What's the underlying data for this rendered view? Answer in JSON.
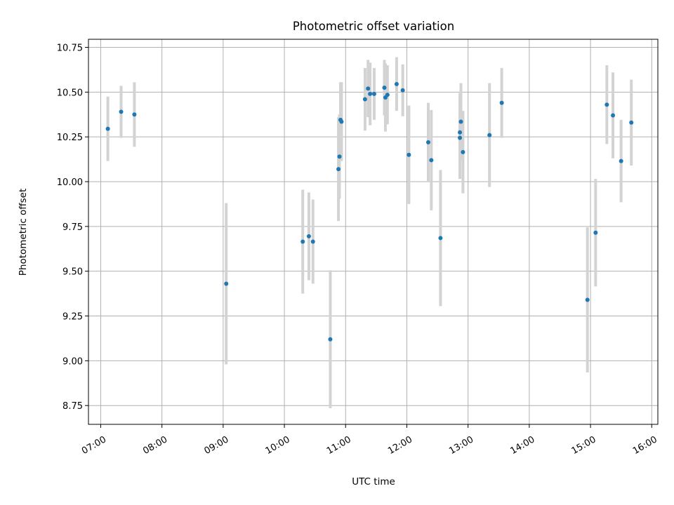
{
  "chart_data": {
    "type": "scatter",
    "title": "Photometric offset variation",
    "xlabel": "UTC time",
    "ylabel": "Photometric offset",
    "grid": true,
    "legend": "none",
    "x_unit": "UTC time (HH:MM)",
    "xlim": [
      "06:48",
      "16:06"
    ],
    "ylim": [
      8.645,
      10.795
    ],
    "x_ticks": [
      "07:00",
      "08:00",
      "09:00",
      "10:00",
      "11:00",
      "12:00",
      "13:00",
      "14:00",
      "15:00",
      "16:00"
    ],
    "y_ticks": [
      "8.75",
      "9.00",
      "9.25",
      "9.50",
      "9.75",
      "10.00",
      "10.25",
      "10.50",
      "10.75"
    ],
    "colors": {
      "points": "#1f77b4",
      "errorbars": "#d3d3d3",
      "grid": "#b0b0b0"
    },
    "points": [
      {
        "x": "07:07",
        "y": 10.295,
        "err": 0.18
      },
      {
        "x": "07:20",
        "y": 10.39,
        "err": 0.145
      },
      {
        "x": "07:33",
        "y": 10.375,
        "err": 0.18
      },
      {
        "x": "09:03",
        "y": 9.43,
        "err": 0.45
      },
      {
        "x": "10:18",
        "y": 9.665,
        "err": 0.29
      },
      {
        "x": "10:24",
        "y": 9.695,
        "err": 0.245
      },
      {
        "x": "10:28",
        "y": 9.665,
        "err": 0.235
      },
      {
        "x": "10:45",
        "y": 9.12,
        "err": 0.385
      },
      {
        "x": "10:53",
        "y": 10.07,
        "err": 0.29
      },
      {
        "x": "10:54",
        "y": 10.14,
        "err": 0.235
      },
      {
        "x": "10:55",
        "y": 10.345,
        "err": 0.21
      },
      {
        "x": "10:56",
        "y": 10.335,
        "err": 0.22
      },
      {
        "x": "11:19",
        "y": 10.46,
        "err": 0.175
      },
      {
        "x": "11:22",
        "y": 10.52,
        "err": 0.16
      },
      {
        "x": "11:24",
        "y": 10.49,
        "err": 0.175
      },
      {
        "x": "11:28",
        "y": 10.49,
        "err": 0.145
      },
      {
        "x": "11:38",
        "y": 10.525,
        "err": 0.155
      },
      {
        "x": "11:39",
        "y": 10.47,
        "err": 0.19
      },
      {
        "x": "11:41",
        "y": 10.485,
        "err": 0.165
      },
      {
        "x": "11:50",
        "y": 10.545,
        "err": 0.15
      },
      {
        "x": "11:56",
        "y": 10.51,
        "err": 0.145
      },
      {
        "x": "12:02",
        "y": 10.15,
        "err": 0.275
      },
      {
        "x": "12:21",
        "y": 10.22,
        "err": 0.22
      },
      {
        "x": "12:24",
        "y": 10.12,
        "err": 0.28
      },
      {
        "x": "12:33",
        "y": 9.685,
        "err": 0.38
      },
      {
        "x": "12:52",
        "y": 10.275,
        "err": 0.22
      },
      {
        "x": "12:52",
        "y": 10.245,
        "err": 0.23
      },
      {
        "x": "12:53",
        "y": 10.335,
        "err": 0.215
      },
      {
        "x": "12:55",
        "y": 10.165,
        "err": 0.23
      },
      {
        "x": "13:21",
        "y": 10.26,
        "err": 0.29
      },
      {
        "x": "13:33",
        "y": 10.44,
        "err": 0.195
      },
      {
        "x": "14:57",
        "y": 9.34,
        "err": 0.405
      },
      {
        "x": "15:05",
        "y": 9.715,
        "err": 0.3
      },
      {
        "x": "15:16",
        "y": 10.43,
        "err": 0.22
      },
      {
        "x": "15:22",
        "y": 10.37,
        "err": 0.24
      },
      {
        "x": "15:30",
        "y": 10.115,
        "err": 0.23
      },
      {
        "x": "15:40",
        "y": 10.33,
        "err": 0.24
      }
    ]
  }
}
